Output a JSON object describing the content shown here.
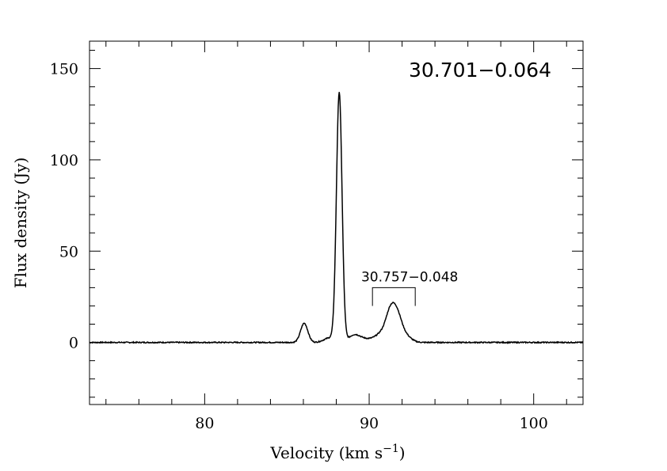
{
  "chart_data": {
    "type": "line",
    "title": "30.701−0.064",
    "xlabel": "Velocity (km s",
    "xlabel_sup": "−1",
    "xlabel_close": ")",
    "ylabel": "Flux density (Jy)",
    "xlim": [
      73,
      103
    ],
    "ylim": [
      -34,
      165
    ],
    "x_ticks": [
      80,
      90,
      100
    ],
    "y_ticks": [
      0,
      50,
      100,
      150
    ],
    "x_tick_labels": [
      "80",
      "90",
      "100"
    ],
    "y_tick_labels": [
      "0",
      "50",
      "100",
      "150"
    ],
    "x_minor_step": 2,
    "y_minor_step": 10,
    "grid": false,
    "series": [
      {
        "peaks": [
          {
            "x": 86.05,
            "amplitude": 10.5,
            "sigma": 0.22
          },
          {
            "x": 87.6,
            "amplitude": 2.5,
            "sigma": 0.35
          },
          {
            "x": 88.18,
            "amplitude": 136.5,
            "sigma": 0.17
          },
          {
            "x": 89.1,
            "amplitude": 4.0,
            "sigma": 0.35
          },
          {
            "x": 89.8,
            "amplitude": 1.5,
            "sigma": 0.4
          },
          {
            "x": 90.9,
            "amplitude": 6.0,
            "sigma": 0.45
          },
          {
            "x": 91.25,
            "amplitude": 9.0,
            "sigma": 0.25
          },
          {
            "x": 91.65,
            "amplitude": 15.0,
            "sigma": 0.3
          },
          {
            "x": 92.2,
            "amplitude": 3.5,
            "sigma": 0.35
          }
        ],
        "noise_rms": 0.3
      }
    ],
    "annotations": [
      {
        "text": "30.757−0.048",
        "x_start": 90.2,
        "x_end": 92.8,
        "y_level": 30,
        "y_bottom": 20
      }
    ]
  }
}
